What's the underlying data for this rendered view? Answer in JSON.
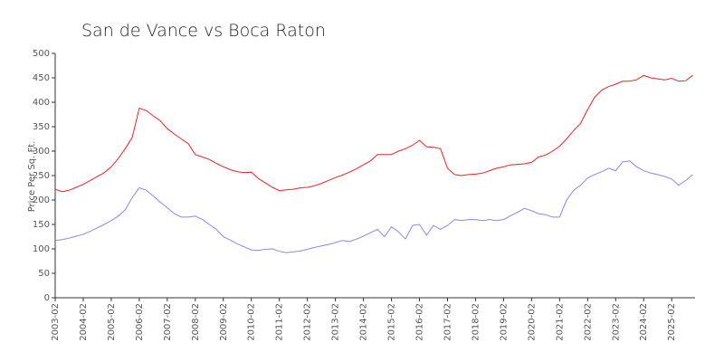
{
  "chart_data": {
    "type": "line",
    "title": "San de Vance vs Boca Raton",
    "y_label": "Price Per Sq. Ft.",
    "x": [
      "2003-02",
      "2003-05",
      "2003-08",
      "2003-11",
      "2004-02",
      "2004-05",
      "2004-08",
      "2004-11",
      "2005-02",
      "2005-05",
      "2005-08",
      "2005-11",
      "2006-02",
      "2006-05",
      "2006-08",
      "2006-11",
      "2007-02",
      "2007-05",
      "2007-08",
      "2007-11",
      "2008-02",
      "2008-05",
      "2008-08",
      "2008-11",
      "2009-02",
      "2009-05",
      "2009-08",
      "2009-11",
      "2010-02",
      "2010-05",
      "2010-08",
      "2010-11",
      "2011-02",
      "2011-05",
      "2011-08",
      "2011-11",
      "2012-02",
      "2012-05",
      "2012-08",
      "2012-11",
      "2013-02",
      "2013-05",
      "2013-08",
      "2013-11",
      "2014-02",
      "2014-05",
      "2014-08",
      "2014-11",
      "2015-02",
      "2015-05",
      "2015-08",
      "2015-11",
      "2016-02",
      "2016-05",
      "2016-08",
      "2016-11",
      "2017-02",
      "2017-05",
      "2017-08",
      "2017-11",
      "2018-02",
      "2018-05",
      "2018-08",
      "2018-11",
      "2019-02",
      "2019-05",
      "2019-08",
      "2019-11",
      "2020-02",
      "2020-05",
      "2020-08",
      "2020-11",
      "2021-02",
      "2021-05",
      "2021-08",
      "2021-11",
      "2022-02",
      "2022-05",
      "2022-08",
      "2022-11",
      "2023-02",
      "2023-05",
      "2023-08",
      "2023-11",
      "2024-02",
      "2024-05",
      "2024-08",
      "2024-11",
      "2025-02",
      "2025-05",
      "2025-08",
      "2025-11"
    ],
    "series": [
      {
        "color": "#ee2222",
        "values": [
          222,
          217,
          220,
          226,
          232,
          240,
          248,
          256,
          268,
          285,
          305,
          328,
          388,
          383,
          372,
          362,
          346,
          335,
          325,
          315,
          293,
          288,
          283,
          275,
          268,
          262,
          258,
          256,
          257,
          244,
          235,
          226,
          219,
          221,
          222,
          225,
          226,
          229,
          234,
          240,
          246,
          251,
          257,
          264,
          272,
          280,
          293,
          293,
          293,
          300,
          305,
          312,
          322,
          309,
          308,
          305,
          265,
          252,
          250,
          252,
          253,
          255,
          260,
          265,
          268,
          272,
          273,
          274,
          277,
          288,
          292,
          300,
          310,
          325,
          342,
          357,
          385,
          410,
          425,
          432,
          437,
          443,
          443,
          446,
          455,
          450,
          448,
          446,
          449,
          443,
          444,
          455
        ]
      },
      {
        "color": "#8888ee",
        "values": [
          117,
          119,
          122,
          126,
          130,
          136,
          143,
          150,
          158,
          167,
          180,
          205,
          225,
          220,
          208,
          196,
          184,
          172,
          165,
          165,
          167,
          160,
          150,
          140,
          125,
          118,
          110,
          104,
          98,
          97,
          99,
          100,
          95,
          92,
          94,
          96,
          99,
          103,
          106,
          109,
          113,
          117,
          115,
          120,
          126,
          133,
          140,
          125,
          145,
          135,
          120,
          148,
          150,
          128,
          148,
          140,
          148,
          160,
          158,
          160,
          160,
          158,
          160,
          158,
          160,
          168,
          175,
          183,
          178,
          172,
          170,
          165,
          165,
          200,
          220,
          230,
          245,
          252,
          258,
          265,
          260,
          278,
          280,
          268,
          260,
          255,
          252,
          248,
          243,
          230,
          240,
          252
        ]
      }
    ],
    "xlim": [
      "2003-02",
      "2025-12"
    ],
    "xticks": [
      "2003-02",
      "2004-02",
      "2005-02",
      "2006-02",
      "2007-02",
      "2008-02",
      "2009-02",
      "2010-02",
      "2011-02",
      "2012-02",
      "2013-02",
      "2014-02",
      "2015-02",
      "2016-02",
      "2017-02",
      "2018-02",
      "2019-02",
      "2020-02",
      "2021-02",
      "2022-02",
      "2023-02",
      "2024-02",
      "2025-02"
    ],
    "ylim": [
      0,
      500
    ],
    "yticks": [
      0,
      50,
      100,
      150,
      200,
      250,
      300,
      350,
      400,
      450,
      500
    ]
  }
}
